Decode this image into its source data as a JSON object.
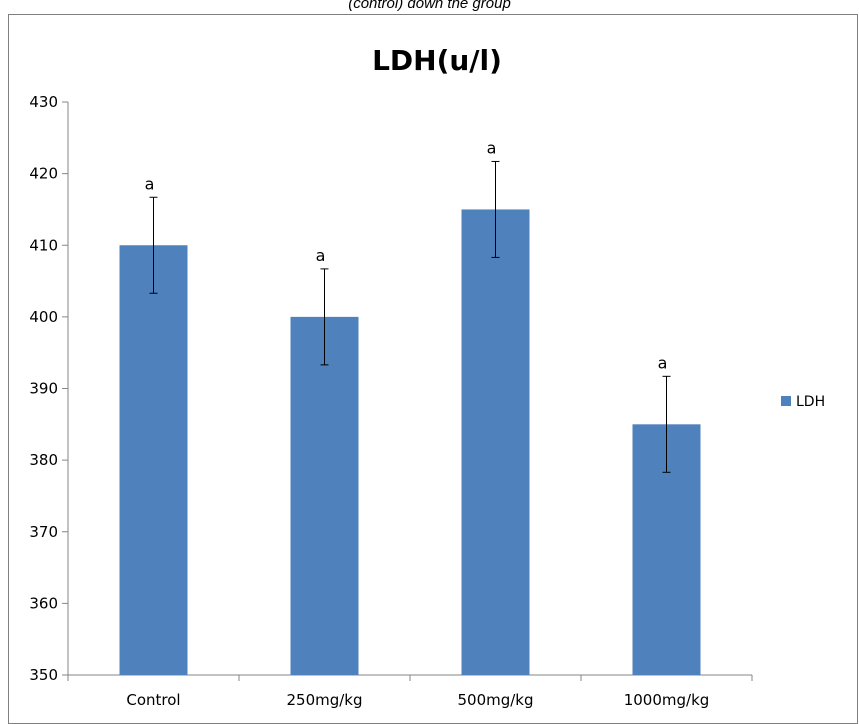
{
  "caption": "(control) down the group",
  "chart_data": {
    "type": "bar",
    "title": "LDH(u/l)",
    "xlabel": "",
    "ylabel": "",
    "categories": [
      "Control",
      "250mg/kg",
      "500mg/kg",
      "1000mg/kg"
    ],
    "series": [
      {
        "name": "LDH",
        "values": [
          410,
          400,
          415,
          385
        ],
        "errors": [
          6.7,
          6.7,
          6.7,
          6.7
        ],
        "color": "#4f81bd"
      }
    ],
    "significance_labels": [
      "a",
      "a",
      "a",
      "a"
    ],
    "ylim": [
      350,
      430
    ],
    "yticks": [
      350,
      360,
      370,
      380,
      390,
      400,
      410,
      420,
      430
    ],
    "grid": false,
    "legend": "right"
  }
}
